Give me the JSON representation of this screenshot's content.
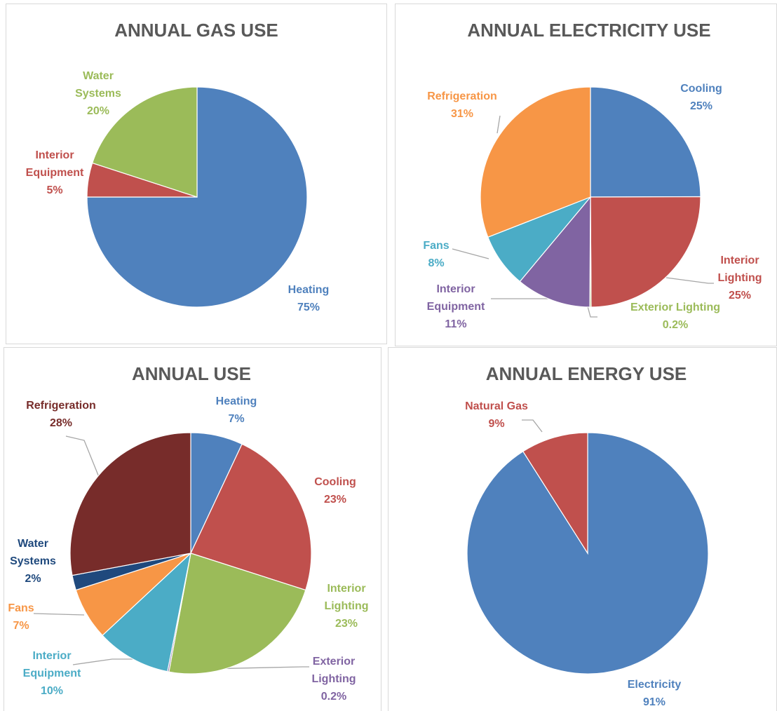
{
  "chart_data": [
    {
      "type": "pie",
      "title": "ANNUAL GAS USE",
      "categories": [
        "Heating",
        "Interior Equipment",
        "Water Systems"
      ],
      "values": [
        75,
        5,
        20
      ],
      "value_labels": [
        "75%",
        "5%",
        "20%"
      ],
      "colors": [
        "#4f81bd",
        "#c0504d",
        "#9bbb59"
      ]
    },
    {
      "type": "pie",
      "title": "ANNUAL ELECTRICITY USE",
      "categories": [
        "Cooling",
        "Interior Lighting",
        "Exterior Lighting",
        "Interior Equipment",
        "Fans",
        "Refrigeration"
      ],
      "values": [
        25,
        25,
        0.2,
        11,
        8,
        31
      ],
      "value_labels": [
        "25%",
        "25%",
        "0.2%",
        "11%",
        "8%",
        "31%"
      ],
      "colors": [
        "#4f81bd",
        "#c0504d",
        "#9bbb59",
        "#8064a2",
        "#4bacc6",
        "#f79646"
      ]
    },
    {
      "type": "pie",
      "title": "ANNUAL USE",
      "categories": [
        "Heating",
        "Cooling",
        "Interior Lighting",
        "Exterior Lighting",
        "Interior Equipment",
        "Fans",
        "Water Systems",
        "Refrigeration"
      ],
      "values": [
        7,
        23,
        23,
        0.2,
        10,
        7,
        2,
        28
      ],
      "value_labels": [
        "7%",
        "23%",
        "23%",
        "0.2%",
        "10%",
        "7%",
        "2%",
        "28%"
      ],
      "colors": [
        "#4f81bd",
        "#c0504d",
        "#9bbb59",
        "#8064a2",
        "#4bacc6",
        "#f79646",
        "#1f497d",
        "#772c2a"
      ]
    },
    {
      "type": "pie",
      "title": "ANNUAL ENERGY USE",
      "categories": [
        "Electricity",
        "Natural Gas"
      ],
      "values": [
        91,
        9
      ],
      "value_labels": [
        "91%",
        "9%"
      ],
      "colors": [
        "#4f81bd",
        "#c0504d"
      ]
    }
  ]
}
